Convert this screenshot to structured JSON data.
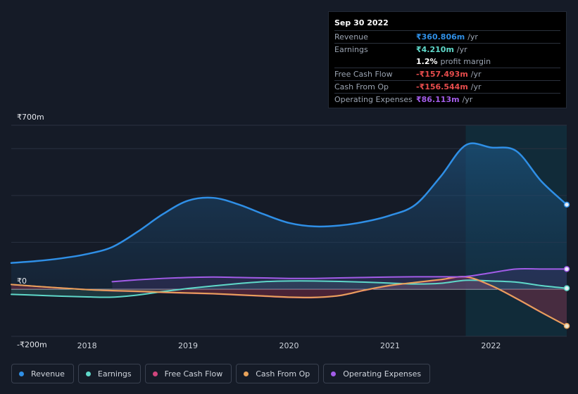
{
  "tooltip": {
    "date": "Sep 30 2022",
    "rows": [
      {
        "label": "Revenue",
        "value": "₹360.806m",
        "unit": "/yr",
        "color": "#2f8fe6"
      },
      {
        "label": "Earnings",
        "value": "₹4.210m",
        "unit": "/yr",
        "color": "#5fd8c9"
      },
      {
        "label": "",
        "value": "1.2%",
        "unit": "profit margin",
        "color": "#ffffff"
      },
      {
        "label": "Free Cash Flow",
        "value": "-₹157.493m",
        "unit": "/yr",
        "color": "#e64c4c"
      },
      {
        "label": "Cash From Op",
        "value": "-₹156.544m",
        "unit": "/yr",
        "color": "#e64c4c"
      },
      {
        "label": "Operating Expenses",
        "value": "₹86.113m",
        "unit": "/yr",
        "color": "#a25ce8"
      }
    ]
  },
  "legend": [
    {
      "label": "Revenue",
      "color": "#2f8fe6"
    },
    {
      "label": "Earnings",
      "color": "#5fd8c9"
    },
    {
      "label": "Free Cash Flow",
      "color": "#d0457d"
    },
    {
      "label": "Cash From Op",
      "color": "#e8a25a"
    },
    {
      "label": "Operating Expenses",
      "color": "#a25ce8"
    }
  ],
  "chart_data": {
    "type": "line",
    "ytick_labels": [
      "₹700m",
      "₹0",
      "-₹200m"
    ],
    "ylim": [
      -200,
      700
    ],
    "xlim": [
      2017.25,
      2022.75
    ],
    "xticks": [
      2018,
      2019,
      2020,
      2021,
      2022
    ],
    "xtick_labels": [
      "2018",
      "2019",
      "2020",
      "2021",
      "2022"
    ],
    "highlight_start": 2021.75,
    "series": [
      {
        "name": "Revenue",
        "color": "#2f8fe6",
        "points": [
          [
            2017.25,
            112
          ],
          [
            2017.5,
            120
          ],
          [
            2017.75,
            132
          ],
          [
            2018.0,
            150
          ],
          [
            2018.25,
            180
          ],
          [
            2018.5,
            245
          ],
          [
            2018.75,
            320
          ],
          [
            2019.0,
            378
          ],
          [
            2019.25,
            390
          ],
          [
            2019.5,
            362
          ],
          [
            2019.75,
            320
          ],
          [
            2020.0,
            283
          ],
          [
            2020.25,
            268
          ],
          [
            2020.5,
            272
          ],
          [
            2020.75,
            288
          ],
          [
            2021.0,
            315
          ],
          [
            2021.25,
            360
          ],
          [
            2021.5,
            480
          ],
          [
            2021.75,
            615
          ],
          [
            2022.0,
            605
          ],
          [
            2022.25,
            590
          ],
          [
            2022.5,
            460
          ],
          [
            2022.75,
            361
          ]
        ]
      },
      {
        "name": "Earnings",
        "color": "#5fd8c9",
        "points": [
          [
            2017.25,
            -22
          ],
          [
            2017.5,
            -26
          ],
          [
            2017.75,
            -30
          ],
          [
            2018.0,
            -33
          ],
          [
            2018.25,
            -34
          ],
          [
            2018.5,
            -25
          ],
          [
            2018.75,
            -10
          ],
          [
            2019.0,
            3
          ],
          [
            2019.25,
            14
          ],
          [
            2019.5,
            24
          ],
          [
            2019.75,
            32
          ],
          [
            2020.0,
            35
          ],
          [
            2020.25,
            35
          ],
          [
            2020.5,
            33
          ],
          [
            2020.75,
            30
          ],
          [
            2021.0,
            26
          ],
          [
            2021.25,
            22
          ],
          [
            2021.5,
            25
          ],
          [
            2021.75,
            38
          ],
          [
            2022.0,
            35
          ],
          [
            2022.25,
            30
          ],
          [
            2022.5,
            15
          ],
          [
            2022.75,
            4
          ]
        ]
      },
      {
        "name": "Free Cash Flow",
        "color": "#d0457d",
        "points": [
          [
            2017.25,
            20
          ],
          [
            2017.5,
            12
          ],
          [
            2017.75,
            5
          ],
          [
            2018.0,
            -2
          ],
          [
            2018.25,
            -7
          ],
          [
            2018.5,
            -10
          ],
          [
            2018.75,
            -14
          ],
          [
            2019.0,
            -17
          ],
          [
            2019.25,
            -20
          ],
          [
            2019.5,
            -25
          ],
          [
            2019.75,
            -30
          ],
          [
            2020.0,
            -35
          ],
          [
            2020.25,
            -36
          ],
          [
            2020.5,
            -28
          ],
          [
            2020.75,
            -5
          ],
          [
            2021.0,
            15
          ],
          [
            2021.25,
            28
          ],
          [
            2021.5,
            40
          ],
          [
            2021.75,
            52
          ],
          [
            2022.0,
            15
          ],
          [
            2022.25,
            -40
          ],
          [
            2022.5,
            -100
          ],
          [
            2022.75,
            -157
          ]
        ]
      },
      {
        "name": "Cash From Op",
        "color": "#e8a25a",
        "points": [
          [
            2017.25,
            20
          ],
          [
            2017.5,
            12
          ],
          [
            2017.75,
            5
          ],
          [
            2018.0,
            -2
          ],
          [
            2018.25,
            -6
          ],
          [
            2018.5,
            -9
          ],
          [
            2018.75,
            -13
          ],
          [
            2019.0,
            -16
          ],
          [
            2019.25,
            -19
          ],
          [
            2019.5,
            -24
          ],
          [
            2019.75,
            -29
          ],
          [
            2020.0,
            -34
          ],
          [
            2020.25,
            -35
          ],
          [
            2020.5,
            -27
          ],
          [
            2020.75,
            -4
          ],
          [
            2021.0,
            16
          ],
          [
            2021.25,
            29
          ],
          [
            2021.5,
            41
          ],
          [
            2021.75,
            53
          ],
          [
            2022.0,
            16
          ],
          [
            2022.25,
            -39
          ],
          [
            2022.5,
            -99
          ],
          [
            2022.75,
            -157
          ]
        ]
      },
      {
        "name": "Operating Expenses",
        "color": "#a25ce8",
        "points": [
          [
            2018.25,
            32
          ],
          [
            2018.5,
            40
          ],
          [
            2018.75,
            46
          ],
          [
            2019.0,
            50
          ],
          [
            2019.25,
            52
          ],
          [
            2019.5,
            50
          ],
          [
            2019.75,
            48
          ],
          [
            2020.0,
            46
          ],
          [
            2020.25,
            46
          ],
          [
            2020.5,
            48
          ],
          [
            2020.75,
            50
          ],
          [
            2021.0,
            52
          ],
          [
            2021.25,
            53
          ],
          [
            2021.5,
            53
          ],
          [
            2021.75,
            54
          ],
          [
            2022.0,
            70
          ],
          [
            2022.25,
            86
          ],
          [
            2022.5,
            86
          ],
          [
            2022.75,
            86
          ]
        ]
      }
    ]
  }
}
